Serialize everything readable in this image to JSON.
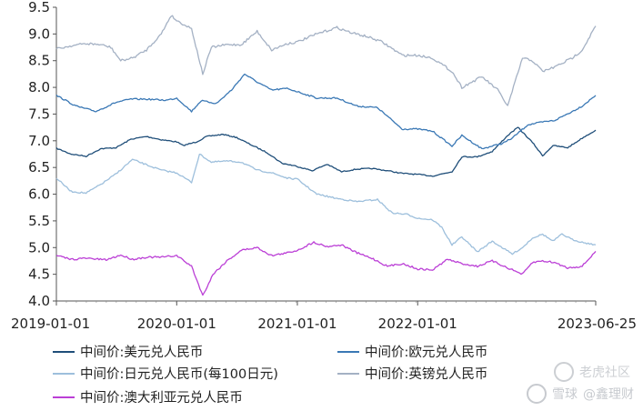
{
  "chart_data": {
    "type": "line",
    "title": "",
    "xlabel": "",
    "ylabel": "",
    "ylim": [
      4.0,
      9.5
    ],
    "yticks": [
      4.0,
      4.5,
      5.0,
      5.5,
      6.0,
      6.5,
      7.0,
      7.5,
      8.0,
      8.5,
      9.0,
      9.5
    ],
    "ytick_labels": [
      "4.0",
      "4.5",
      "5.0",
      "5.5",
      "6.0",
      "6.5",
      "7.0",
      "7.5",
      "8.0",
      "8.5",
      "9.0",
      "9.5"
    ],
    "xlim": [
      "2019-01-01",
      "2023-06-25"
    ],
    "xticks": [
      "2019-01-01",
      "2020-01-01",
      "2021-01-01",
      "2022-01-01",
      "2023-06-25"
    ],
    "xtick_labels": [
      "2019-01-01",
      "2020-01-01",
      "2021-01-01",
      "2022-01-01",
      "2023-06-25"
    ],
    "grid": false,
    "legend_position": "bottom",
    "series": [
      {
        "name": "中间价:美元兑人民币",
        "color": "#1f4e79",
        "points": [
          [
            "2019-01-01",
            6.86
          ],
          [
            "2019-02-15",
            6.75
          ],
          [
            "2019-04-01",
            6.71
          ],
          [
            "2019-05-15",
            6.85
          ],
          [
            "2019-07-01",
            6.87
          ],
          [
            "2019-08-15",
            7.03
          ],
          [
            "2019-10-01",
            7.08
          ],
          [
            "2019-11-15",
            7.02
          ],
          [
            "2020-01-01",
            6.98
          ],
          [
            "2020-01-20",
            6.91
          ],
          [
            "2020-03-01",
            6.98
          ],
          [
            "2020-04-01",
            7.08
          ],
          [
            "2020-05-20",
            7.12
          ],
          [
            "2020-07-01",
            7.06
          ],
          [
            "2020-08-15",
            6.92
          ],
          [
            "2020-10-01",
            6.78
          ],
          [
            "2020-11-15",
            6.58
          ],
          [
            "2021-01-01",
            6.52
          ],
          [
            "2021-02-15",
            6.44
          ],
          [
            "2021-04-01",
            6.56
          ],
          [
            "2021-05-15",
            6.42
          ],
          [
            "2021-07-01",
            6.47
          ],
          [
            "2021-08-15",
            6.48
          ],
          [
            "2021-10-01",
            6.44
          ],
          [
            "2021-11-15",
            6.39
          ],
          [
            "2022-01-01",
            6.37
          ],
          [
            "2022-02-15",
            6.34
          ],
          [
            "2022-04-15",
            6.42
          ],
          [
            "2022-05-15",
            6.7
          ],
          [
            "2022-07-01",
            6.7
          ],
          [
            "2022-08-15",
            6.8
          ],
          [
            "2022-10-01",
            7.1
          ],
          [
            "2022-11-01",
            7.25
          ],
          [
            "2022-12-15",
            6.97
          ],
          [
            "2023-01-15",
            6.72
          ],
          [
            "2023-02-15",
            6.91
          ],
          [
            "2023-04-01",
            6.87
          ],
          [
            "2023-05-15",
            7.05
          ],
          [
            "2023-06-25",
            7.2
          ]
        ]
      },
      {
        "name": "中间价:欧元兑人民币",
        "color": "#3a78b5",
        "points": [
          [
            "2019-01-01",
            7.85
          ],
          [
            "2019-03-01",
            7.65
          ],
          [
            "2019-05-01",
            7.55
          ],
          [
            "2019-07-01",
            7.72
          ],
          [
            "2019-08-15",
            7.78
          ],
          [
            "2019-10-01",
            7.78
          ],
          [
            "2019-12-01",
            7.76
          ],
          [
            "2020-01-01",
            7.8
          ],
          [
            "2020-02-15",
            7.55
          ],
          [
            "2020-03-15",
            7.75
          ],
          [
            "2020-05-01",
            7.7
          ],
          [
            "2020-06-15",
            7.95
          ],
          [
            "2020-07-25",
            8.25
          ],
          [
            "2020-09-01",
            8.1
          ],
          [
            "2020-10-15",
            7.95
          ],
          [
            "2020-12-01",
            7.98
          ],
          [
            "2021-01-01",
            7.92
          ],
          [
            "2021-03-01",
            7.8
          ],
          [
            "2021-05-01",
            7.8
          ],
          [
            "2021-07-01",
            7.65
          ],
          [
            "2021-09-01",
            7.62
          ],
          [
            "2021-11-15",
            7.22
          ],
          [
            "2022-01-01",
            7.22
          ],
          [
            "2022-02-15",
            7.18
          ],
          [
            "2022-04-15",
            6.9
          ],
          [
            "2022-05-15",
            7.1
          ],
          [
            "2022-07-15",
            6.85
          ],
          [
            "2022-09-15",
            6.95
          ],
          [
            "2022-10-15",
            7.05
          ],
          [
            "2022-12-01",
            7.3
          ],
          [
            "2023-01-15",
            7.35
          ],
          [
            "2023-02-20",
            7.38
          ],
          [
            "2023-04-15",
            7.55
          ],
          [
            "2023-05-15",
            7.65
          ],
          [
            "2023-06-25",
            7.85
          ]
        ]
      },
      {
        "name": "中间价:日元兑人民币(每100日元)",
        "color": "#9dbfdc",
        "points": [
          [
            "2019-01-01",
            6.3
          ],
          [
            "2019-02-15",
            6.05
          ],
          [
            "2019-04-01",
            6.02
          ],
          [
            "2019-05-15",
            6.18
          ],
          [
            "2019-07-01",
            6.38
          ],
          [
            "2019-08-20",
            6.65
          ],
          [
            "2019-10-01",
            6.55
          ],
          [
            "2019-11-15",
            6.45
          ],
          [
            "2020-01-01",
            6.4
          ],
          [
            "2020-02-15",
            6.22
          ],
          [
            "2020-03-10",
            6.75
          ],
          [
            "2020-04-15",
            6.6
          ],
          [
            "2020-06-01",
            6.62
          ],
          [
            "2020-07-15",
            6.6
          ],
          [
            "2020-09-01",
            6.45
          ],
          [
            "2020-10-15",
            6.4
          ],
          [
            "2020-12-01",
            6.3
          ],
          [
            "2021-01-01",
            6.28
          ],
          [
            "2021-03-01",
            6.0
          ],
          [
            "2021-05-01",
            5.92
          ],
          [
            "2021-07-01",
            5.86
          ],
          [
            "2021-09-01",
            5.9
          ],
          [
            "2021-10-15",
            5.65
          ],
          [
            "2021-12-01",
            5.62
          ],
          [
            "2022-01-01",
            5.55
          ],
          [
            "2022-02-15",
            5.52
          ],
          [
            "2022-03-15",
            5.38
          ],
          [
            "2022-04-15",
            5.05
          ],
          [
            "2022-05-15",
            5.2
          ],
          [
            "2022-07-01",
            4.92
          ],
          [
            "2022-08-15",
            5.12
          ],
          [
            "2022-10-15",
            4.88
          ],
          [
            "2022-11-15",
            5.0
          ],
          [
            "2022-12-15",
            5.18
          ],
          [
            "2023-01-15",
            5.25
          ],
          [
            "2023-02-15",
            5.12
          ],
          [
            "2023-03-15",
            5.25
          ],
          [
            "2023-04-15",
            5.15
          ],
          [
            "2023-05-15",
            5.1
          ],
          [
            "2023-06-25",
            5.05
          ]
        ]
      },
      {
        "name": "中间价:英镑兑人民币",
        "color": "#a4b1c4",
        "points": [
          [
            "2019-01-01",
            8.72
          ],
          [
            "2019-02-15",
            8.78
          ],
          [
            "2019-04-01",
            8.82
          ],
          [
            "2019-05-15",
            8.8
          ],
          [
            "2019-06-15",
            8.75
          ],
          [
            "2019-07-15",
            8.5
          ],
          [
            "2019-08-20",
            8.55
          ],
          [
            "2019-10-01",
            8.7
          ],
          [
            "2019-11-15",
            9.0
          ],
          [
            "2019-12-15",
            9.35
          ],
          [
            "2020-01-01",
            9.25
          ],
          [
            "2020-02-15",
            9.1
          ],
          [
            "2020-03-20",
            8.25
          ],
          [
            "2020-04-15",
            8.75
          ],
          [
            "2020-06-01",
            8.8
          ],
          [
            "2020-07-15",
            8.8
          ],
          [
            "2020-09-01",
            9.05
          ],
          [
            "2020-10-15",
            8.7
          ],
          [
            "2020-12-01",
            8.82
          ],
          [
            "2021-01-01",
            8.85
          ],
          [
            "2021-03-01",
            9.0
          ],
          [
            "2021-05-01",
            9.12
          ],
          [
            "2021-06-15",
            9.02
          ],
          [
            "2021-08-01",
            8.95
          ],
          [
            "2021-09-15",
            8.85
          ],
          [
            "2021-11-15",
            8.6
          ],
          [
            "2022-01-01",
            8.6
          ],
          [
            "2022-02-15",
            8.55
          ],
          [
            "2022-04-15",
            8.3
          ],
          [
            "2022-05-15",
            8.0
          ],
          [
            "2022-07-15",
            8.2
          ],
          [
            "2022-09-01",
            7.95
          ],
          [
            "2022-10-01",
            7.65
          ],
          [
            "2022-11-15",
            8.55
          ],
          [
            "2022-12-15",
            8.5
          ],
          [
            "2023-01-15",
            8.3
          ],
          [
            "2023-02-20",
            8.38
          ],
          [
            "2023-04-15",
            8.55
          ],
          [
            "2023-05-15",
            8.7
          ],
          [
            "2023-06-25",
            9.15
          ]
        ]
      },
      {
        "name": "中间价:澳大利亚元兑人民币",
        "color": "#bb3fd6",
        "points": [
          [
            "2019-01-01",
            4.85
          ],
          [
            "2019-02-15",
            4.78
          ],
          [
            "2019-04-01",
            4.8
          ],
          [
            "2019-06-01",
            4.77
          ],
          [
            "2019-07-15",
            4.86
          ],
          [
            "2019-08-20",
            4.78
          ],
          [
            "2019-10-01",
            4.82
          ],
          [
            "2019-11-15",
            4.82
          ],
          [
            "2020-01-01",
            4.85
          ],
          [
            "2020-02-15",
            4.65
          ],
          [
            "2020-03-20",
            4.1
          ],
          [
            "2020-04-20",
            4.5
          ],
          [
            "2020-06-01",
            4.75
          ],
          [
            "2020-07-15",
            4.95
          ],
          [
            "2020-09-01",
            5.0
          ],
          [
            "2020-10-15",
            4.85
          ],
          [
            "2020-12-01",
            4.9
          ],
          [
            "2021-01-01",
            4.95
          ],
          [
            "2021-02-20",
            5.1
          ],
          [
            "2021-04-01",
            5.02
          ],
          [
            "2021-05-15",
            5.05
          ],
          [
            "2021-07-01",
            4.9
          ],
          [
            "2021-08-15",
            4.8
          ],
          [
            "2021-10-01",
            4.65
          ],
          [
            "2021-11-15",
            4.7
          ],
          [
            "2022-01-01",
            4.6
          ],
          [
            "2022-02-15",
            4.58
          ],
          [
            "2022-04-01",
            4.78
          ],
          [
            "2022-05-15",
            4.7
          ],
          [
            "2022-07-01",
            4.65
          ],
          [
            "2022-08-15",
            4.75
          ],
          [
            "2022-10-01",
            4.62
          ],
          [
            "2022-11-15",
            4.5
          ],
          [
            "2022-12-15",
            4.72
          ],
          [
            "2023-01-15",
            4.75
          ],
          [
            "2023-02-20",
            4.72
          ],
          [
            "2023-04-01",
            4.62
          ],
          [
            "2023-05-15",
            4.65
          ],
          [
            "2023-06-25",
            4.93
          ]
        ]
      }
    ]
  },
  "watermarks": {
    "lhs": "老虎社区",
    "xq": "雪球",
    "account": "@鑫理财"
  }
}
